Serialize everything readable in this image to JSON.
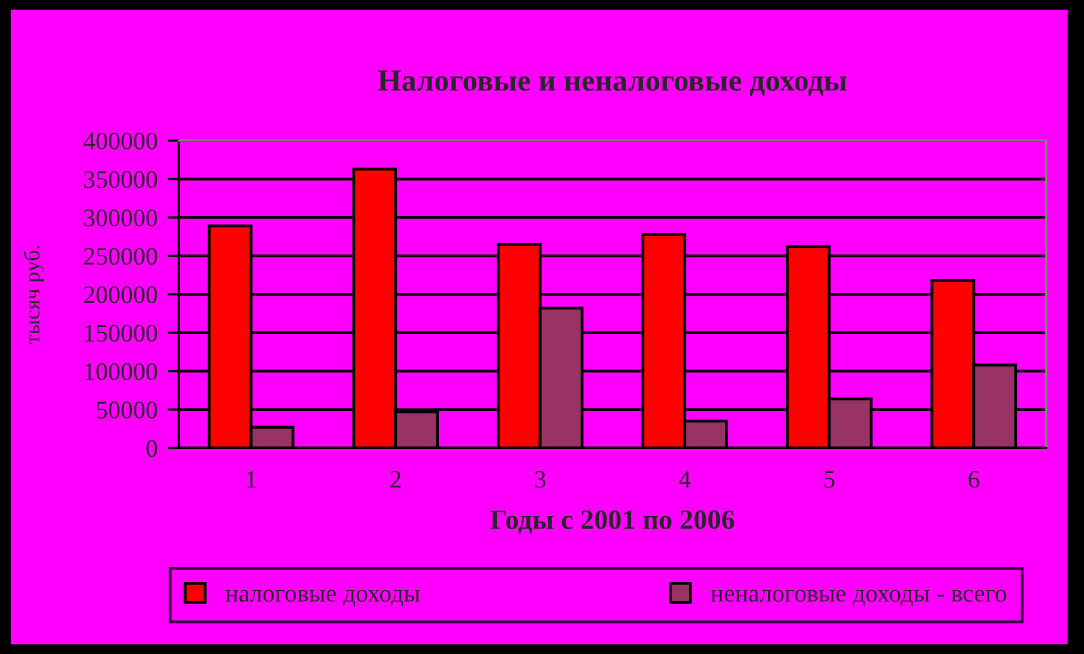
{
  "chart_data": {
    "type": "bar",
    "title": "Налоговые и неналоговые доходы",
    "xlabel": "Годы с 2001 по 2006",
    "ylabel": "тысяч руб.",
    "categories": [
      "1",
      "2",
      "3",
      "4",
      "5",
      "6"
    ],
    "series": [
      {
        "name": "налоговые доходы",
        "color": "#ff0000",
        "values": [
          289000,
          363000,
          265000,
          278000,
          262000,
          218000
        ]
      },
      {
        "name": "неналоговые доходы - всего",
        "color": "#993366",
        "values": [
          27000,
          47000,
          182000,
          35000,
          64000,
          108000
        ]
      }
    ],
    "ylim": [
      0,
      400000
    ],
    "yticks": [
      0,
      50000,
      100000,
      150000,
      200000,
      250000,
      300000,
      350000,
      400000
    ],
    "grid": "y",
    "legend": "bottom"
  }
}
